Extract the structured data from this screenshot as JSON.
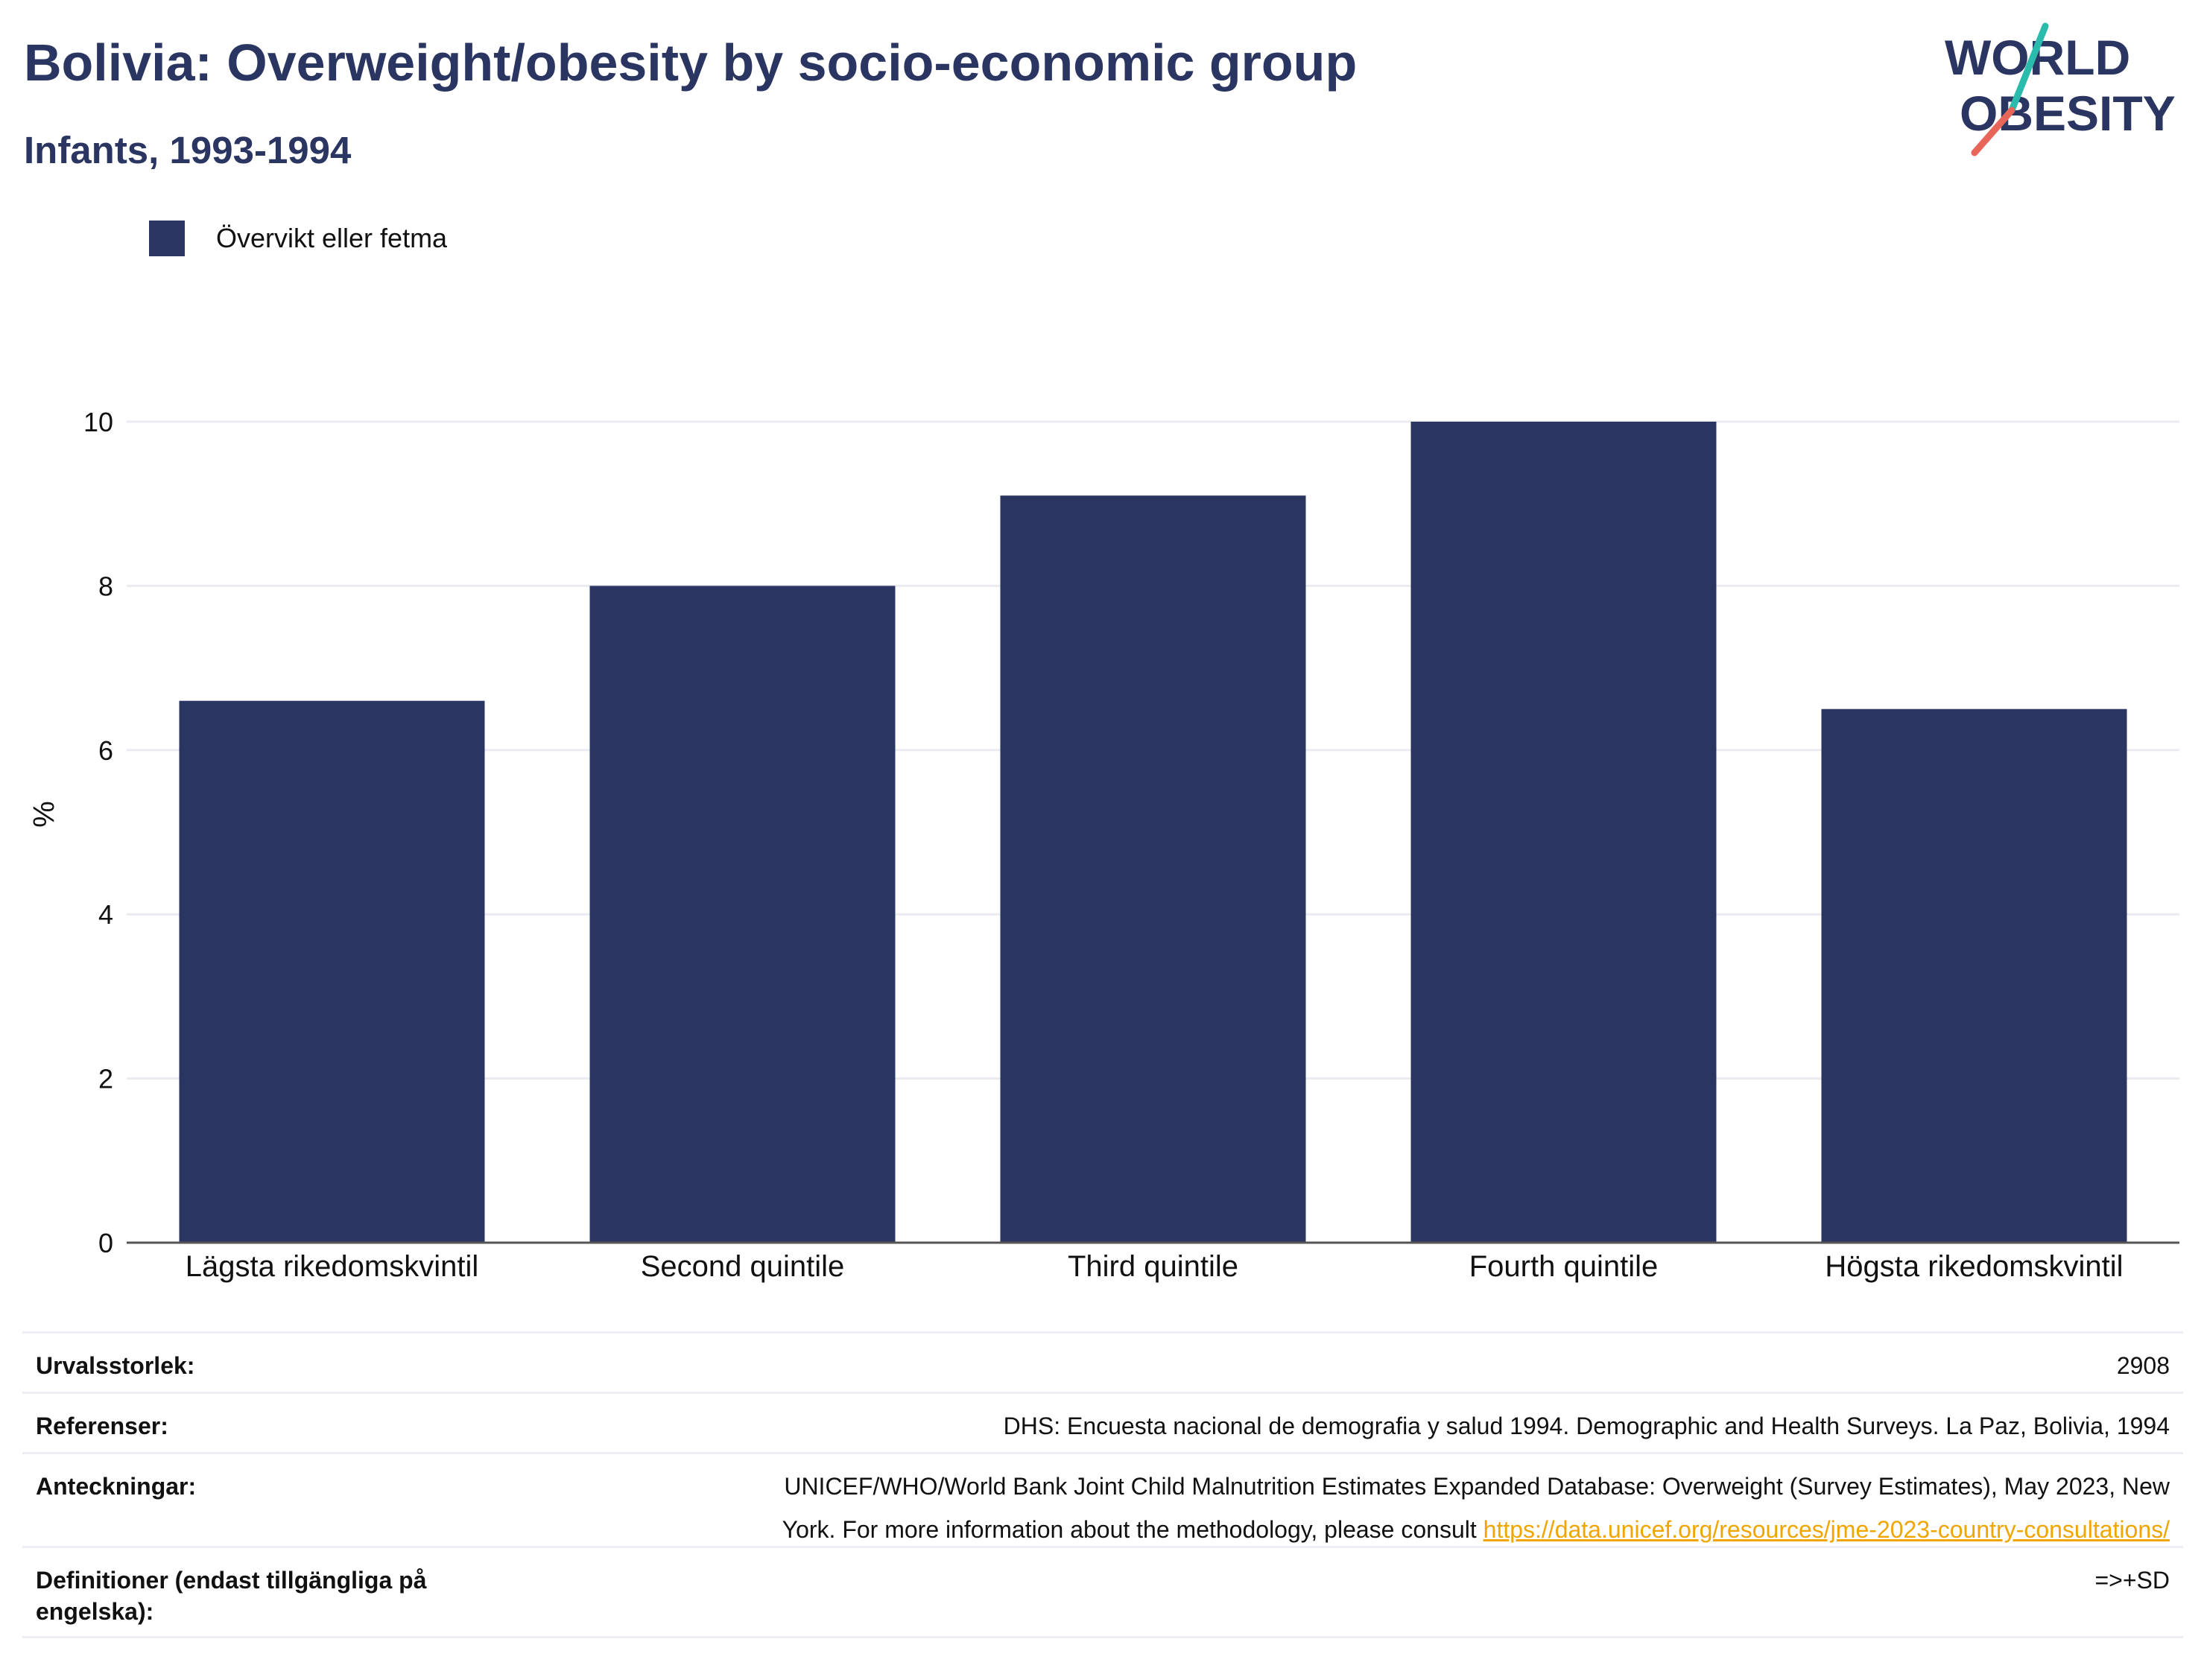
{
  "header": {
    "title": "Bolivia: Overweight/obesity by socio-economic group",
    "subtitle": "Infants, 1993-1994"
  },
  "logo": {
    "line1": "WORLD",
    "line2": "OBESITY"
  },
  "legend": {
    "label": "Övervikt eller fetma",
    "color": "#2a3561"
  },
  "chart_data": {
    "type": "bar",
    "categories": [
      "Lägsta rikedomskvintil",
      "Second quintile",
      "Third quintile",
      "Fourth quintile",
      "Högsta rikedomskvintil"
    ],
    "series": [
      {
        "name": "Övervikt eller fetma",
        "values": [
          6.6,
          8.0,
          9.1,
          10.0,
          6.5
        ]
      }
    ],
    "ylabel": "%",
    "ylim": [
      0,
      10
    ],
    "yticks": [
      0,
      2,
      4,
      6,
      8,
      10
    ],
    "grid": true,
    "color": "#2a3561"
  },
  "meta": {
    "sample_label": "Urvalsstorlek:",
    "sample_value": "2908",
    "refs_label": "Referenser:",
    "refs_value": "DHS: Encuesta nacional de demografia y salud 1994. Demographic and Health Surveys. La Paz, Bolivia, 1994",
    "notes_label": "Anteckningar:",
    "notes_value_line1": "UNICEF/WHO/World Bank Joint Child Malnutrition Estimates Expanded Database: Overweight (Survey Estimates), May 2023, New",
    "notes_value_line2": "York. For more information about the methodology, please consult",
    "notes_link": "https://data.unicef.org/resources/jme-2023-country-consultations/",
    "defs_label": "Definitioner (endast tillgängliga på engelska):",
    "defs_value": "=>+SD"
  }
}
